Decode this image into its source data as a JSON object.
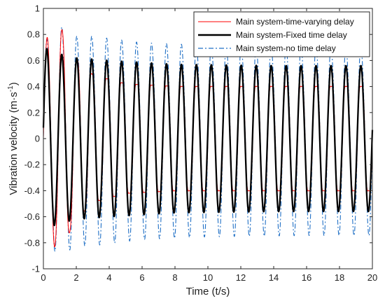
{
  "chart_data": {
    "type": "line",
    "xlabel": "Time (t/s)",
    "ylabel": "Vibration velocity (m·s",
    "ylabel_sup": "-1",
    "ylabel_close": ")",
    "xlim": [
      0,
      20
    ],
    "ylim": [
      -1,
      1
    ],
    "xticks": [
      0,
      2,
      4,
      6,
      8,
      10,
      12,
      14,
      16,
      18,
      20
    ],
    "xtick_labels": [
      "0",
      "2",
      "4",
      "6",
      "8",
      "10",
      "12",
      "14",
      "16",
      "18",
      "20"
    ],
    "yticks": [
      -1,
      -0.8,
      -0.6,
      -0.4,
      -0.2,
      0,
      0.2,
      0.4,
      0.6,
      0.8,
      1
    ],
    "ytick_labels": [
      "-1",
      "-0.8",
      "-0.6",
      "-0.4",
      "-0.2",
      "0",
      "0.2",
      "0.4",
      "0.6",
      "0.8",
      "1"
    ],
    "grid": false,
    "legend_position": "top-right",
    "oscillation_frequency_hz": 1.1,
    "series": [
      {
        "name": "Main system-time-varying delay",
        "color": "#ff0000",
        "style": "solid",
        "envelope": [
          [
            0,
            0.75
          ],
          [
            1,
            0.9
          ],
          [
            2,
            0.68
          ],
          [
            3,
            0.55
          ],
          [
            5,
            0.48
          ],
          [
            8,
            0.46
          ],
          [
            14,
            0.46
          ],
          [
            20,
            0.46
          ]
        ]
      },
      {
        "name": "Main system-Fixed time delay",
        "color": "#000000",
        "style": "solid-bold",
        "envelope": [
          [
            0,
            0.7
          ],
          [
            1,
            0.65
          ],
          [
            2,
            0.62
          ],
          [
            4,
            0.6
          ],
          [
            8,
            0.57
          ],
          [
            14,
            0.56
          ],
          [
            20,
            0.56
          ]
        ]
      },
      {
        "name": "Main system-no time delay",
        "color": "#1f6fc5",
        "style": "dashdot",
        "envelope": [
          [
            0,
            0.75
          ],
          [
            1,
            0.88
          ],
          [
            2,
            0.8
          ],
          [
            3,
            0.8
          ],
          [
            6,
            0.75
          ],
          [
            10,
            0.73
          ],
          [
            16,
            0.72
          ],
          [
            20,
            0.72
          ]
        ]
      }
    ]
  }
}
